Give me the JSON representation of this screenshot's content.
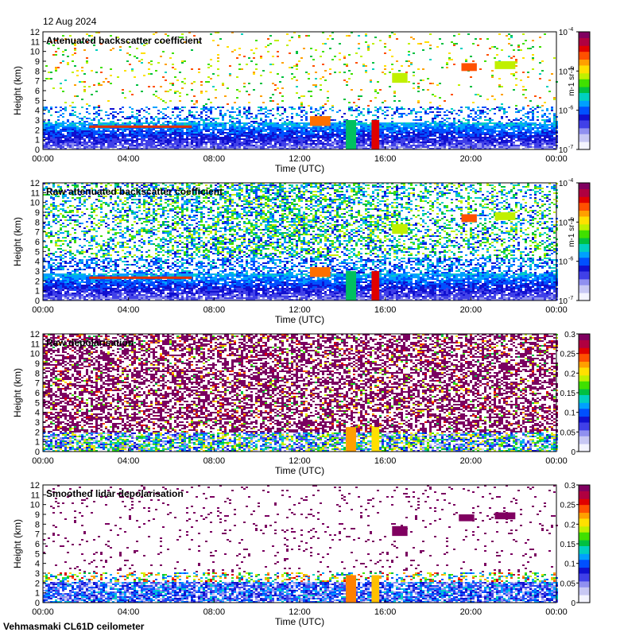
{
  "date": "12 Aug 2024",
  "footer": "Vehmasmaki CL61D ceilometer",
  "chart_data": [
    {
      "type": "heatmap",
      "title": "Attenuated backscatter coefficient",
      "xlabel": "Time (UTC)",
      "ylabel": "Height (km)",
      "x_ticks": [
        "00:00",
        "04:00",
        "08:00",
        "12:00",
        "16:00",
        "20:00",
        "00:00"
      ],
      "y_ticks": [
        "0",
        "1",
        "2",
        "3",
        "4",
        "5",
        "6",
        "7",
        "8",
        "9",
        "10",
        "11",
        "12"
      ],
      "ylim": [
        0,
        12
      ],
      "colorbar": {
        "scale": "log",
        "range": [
          1e-07,
          0.0001
        ],
        "tick_labels": [
          "10",
          "10",
          "10",
          "10"
        ],
        "tick_exponents": [
          "-7",
          "-6",
          "-5",
          "-4"
        ],
        "units": "m-1 sr-1"
      }
    },
    {
      "type": "heatmap",
      "title": "Raw attenuated backscatter coefficient",
      "xlabel": "Time (UTC)",
      "ylabel": "Height (km)",
      "x_ticks": [
        "00:00",
        "04:00",
        "08:00",
        "12:00",
        "16:00",
        "20:00",
        "00:00"
      ],
      "y_ticks": [
        "0",
        "1",
        "2",
        "3",
        "4",
        "5",
        "6",
        "7",
        "8",
        "9",
        "10",
        "11",
        "12"
      ],
      "ylim": [
        0,
        12
      ],
      "colorbar": {
        "scale": "log",
        "range": [
          1e-07,
          0.0001
        ],
        "tick_labels": [
          "10",
          "10",
          "10",
          "10"
        ],
        "tick_exponents": [
          "-7",
          "-6",
          "-5",
          "-4"
        ],
        "units": "m-1 sr-1"
      }
    },
    {
      "type": "heatmap",
      "title": "Raw depolarisation",
      "xlabel": "Time (UTC)",
      "ylabel": "Height (km)",
      "x_ticks": [
        "00:00",
        "04:00",
        "08:00",
        "12:00",
        "16:00",
        "20:00",
        "00:00"
      ],
      "y_ticks": [
        "0",
        "1",
        "2",
        "3",
        "4",
        "5",
        "6",
        "7",
        "8",
        "9",
        "10",
        "11",
        "12"
      ],
      "ylim": [
        0,
        12
      ],
      "colorbar": {
        "scale": "linear",
        "range": [
          0,
          0.3
        ],
        "tick_labels": [
          "0",
          "0.05",
          "0.1",
          "0.15",
          "0.2",
          "0.25",
          "0.3"
        ]
      }
    },
    {
      "type": "heatmap",
      "title": "Smoothed lidar depolarisation",
      "xlabel": "Time (UTC)",
      "ylabel": "Height (km)",
      "x_ticks": [
        "00:00",
        "04:00",
        "08:00",
        "12:00",
        "16:00",
        "20:00",
        "00:00"
      ],
      "y_ticks": [
        "0",
        "1",
        "2",
        "3",
        "4",
        "5",
        "6",
        "7",
        "8",
        "9",
        "10",
        "11",
        "12"
      ],
      "ylim": [
        0,
        12
      ],
      "colorbar": {
        "scale": "linear",
        "range": [
          0,
          0.3
        ],
        "tick_labels": [
          "0",
          "0.05",
          "0.1",
          "0.15",
          "0.2",
          "0.25",
          "0.3"
        ]
      }
    }
  ]
}
